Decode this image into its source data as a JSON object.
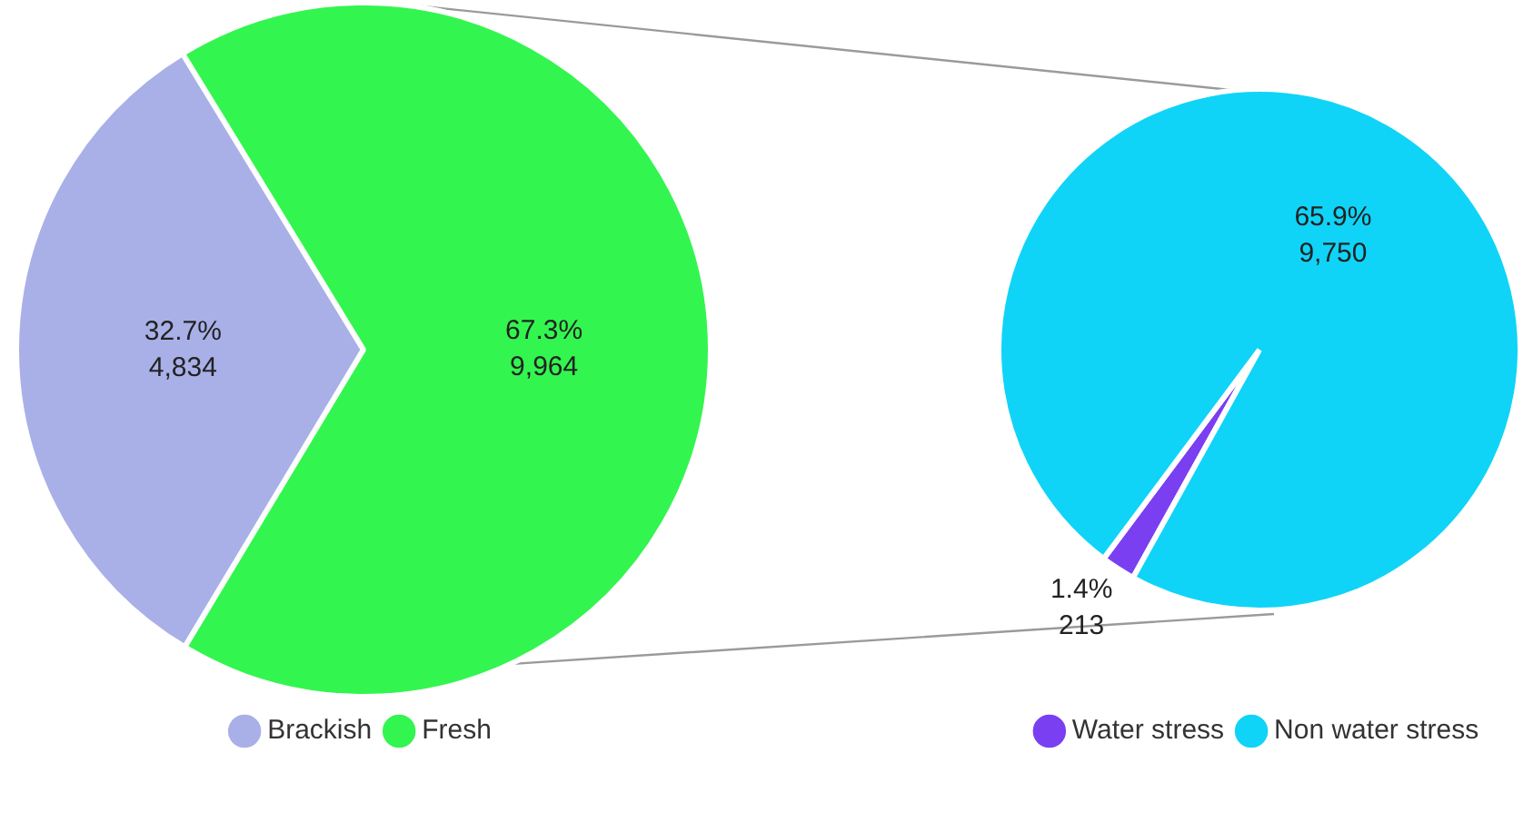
{
  "chart_data": [
    {
      "type": "pie",
      "categories": [
        "Brackish",
        "Fresh"
      ],
      "values": [
        4834,
        9964
      ],
      "colors": [
        "#a9b0e8",
        "#33f54f"
      ],
      "value_labels": [
        "32.7%\n4,834",
        "67.3%\n9,964"
      ],
      "legend": "bottom"
    },
    {
      "type": "pie",
      "categories": [
        "Water stress",
        "Non water stress"
      ],
      "values": [
        213,
        9750
      ],
      "colors": [
        "#7b3ff2",
        "#0fd4f7"
      ],
      "value_labels": [
        "1.4%\n213",
        "65.9%\n9,750"
      ],
      "legend": "bottom"
    }
  ]
}
